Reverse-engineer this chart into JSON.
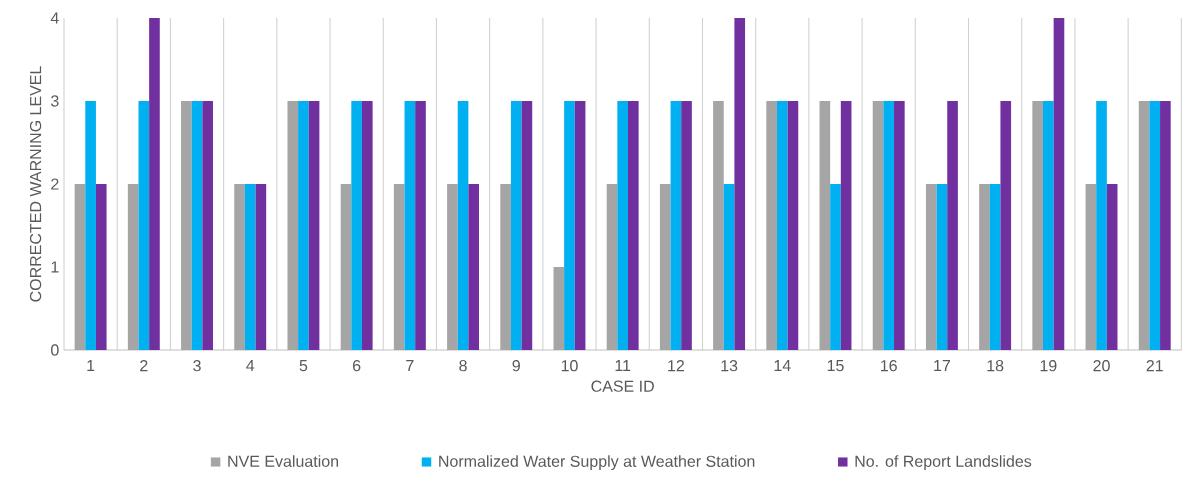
{
  "chart_data": {
    "type": "bar",
    "xlabel": "CASE ID",
    "ylabel": "CORRECTED WARNING LEVEL",
    "categories": [
      "1",
      "2",
      "3",
      "4",
      "5",
      "6",
      "7",
      "8",
      "9",
      "10",
      "11",
      "12",
      "13",
      "14",
      "15",
      "16",
      "17",
      "18",
      "19",
      "20",
      "21"
    ],
    "series": [
      {
        "name": "NVE Evaluation",
        "color": "#a5a5a5",
        "values": [
          2,
          2,
          3,
          2,
          3,
          2,
          2,
          2,
          2,
          1,
          2,
          2,
          3,
          3,
          3,
          3,
          2,
          2,
          3,
          2,
          3
        ]
      },
      {
        "name": "Normalized Water Supply at Weather Station",
        "color": "#00b0f0",
        "values": [
          3,
          3,
          3,
          2,
          3,
          3,
          3,
          3,
          3,
          3,
          3,
          3,
          2,
          3,
          2,
          3,
          2,
          2,
          3,
          3,
          3
        ]
      },
      {
        "name": "No. of Report Landslides",
        "color": "#7030a0",
        "values": [
          2,
          4,
          3,
          2,
          3,
          3,
          3,
          2,
          3,
          3,
          3,
          3,
          4,
          3,
          3,
          3,
          3,
          3,
          4,
          2,
          3
        ]
      }
    ],
    "ylim": [
      0,
      4
    ],
    "yticks": [
      0,
      1,
      2,
      3,
      4
    ],
    "grid": "x",
    "legend": "bottom"
  }
}
